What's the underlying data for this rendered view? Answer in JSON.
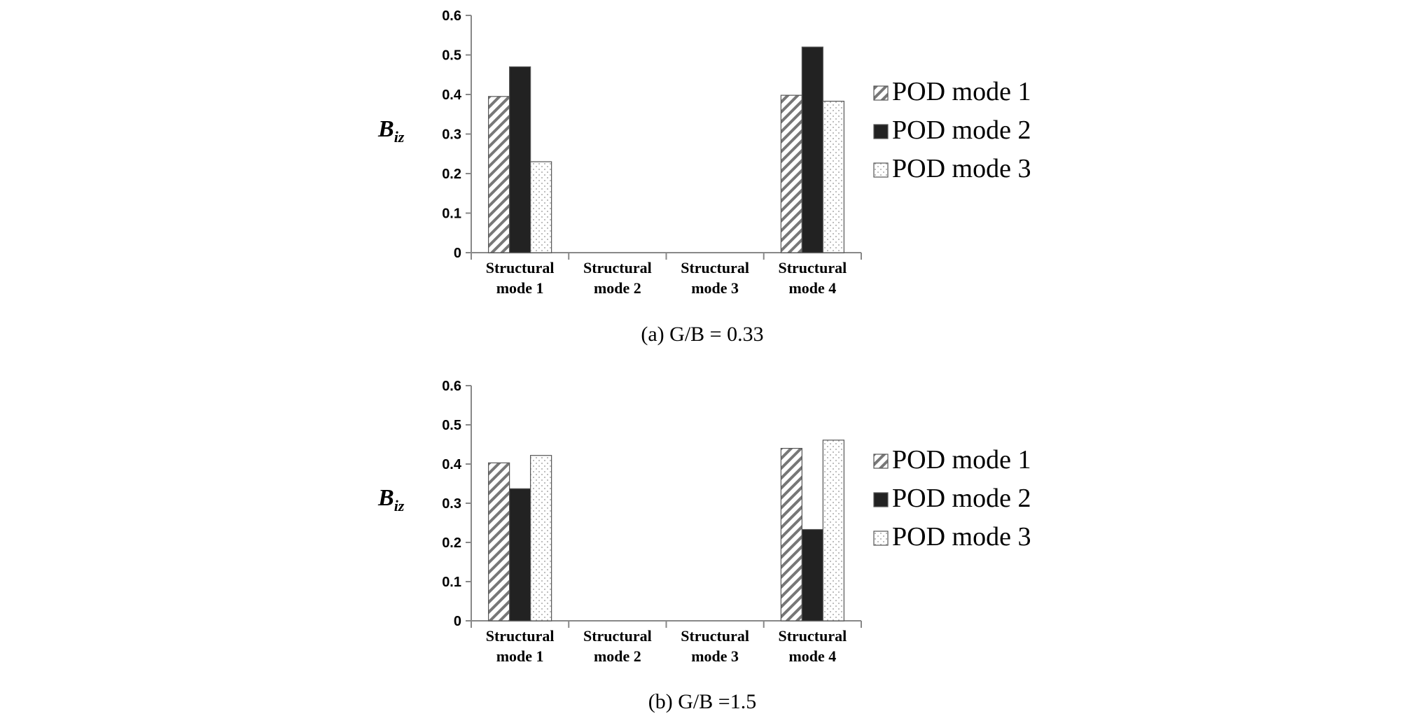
{
  "chart_data": [
    {
      "type": "bar",
      "title": "(a) G/B = 0.33",
      "ylabel_main": "B",
      "ylabel_sub": "iz",
      "ylim": [
        0,
        0.6
      ],
      "yticks": [
        "0",
        "0.1",
        "0.2",
        "0.3",
        "0.4",
        "0.5",
        "0.6"
      ],
      "categories": [
        [
          "Structural",
          "mode 1"
        ],
        [
          "Structural",
          "mode 2"
        ],
        [
          "Structural",
          "mode 3"
        ],
        [
          "Structural",
          "mode 4"
        ]
      ],
      "series": [
        {
          "name": "POD mode 1",
          "values": [
            0.395,
            0,
            0,
            0.398
          ]
        },
        {
          "name": "POD mode 2",
          "values": [
            0.47,
            0,
            0,
            0.52
          ]
        },
        {
          "name": "POD mode 3",
          "values": [
            0.23,
            0,
            0,
            0.383
          ]
        }
      ],
      "legend_position": "right",
      "grid": false
    },
    {
      "type": "bar",
      "title": "(b) G/B =1.5",
      "ylabel_main": "B",
      "ylabel_sub": "iz",
      "ylim": [
        0,
        0.6
      ],
      "yticks": [
        "0",
        "0.1",
        "0.2",
        "0.3",
        "0.4",
        "0.5",
        "0.6"
      ],
      "categories": [
        [
          "Structural",
          "mode 1"
        ],
        [
          "Structural",
          "mode 2"
        ],
        [
          "Structural",
          "mode 3"
        ],
        [
          "Structural",
          "mode 4"
        ]
      ],
      "series": [
        {
          "name": "POD mode 1",
          "values": [
            0.403,
            0,
            0,
            0.44
          ]
        },
        {
          "name": "POD mode 2",
          "values": [
            0.337,
            0,
            0,
            0.233
          ]
        },
        {
          "name": "POD mode 3",
          "values": [
            0.422,
            0,
            0,
            0.461
          ]
        }
      ],
      "legend_position": "right",
      "grid": false
    }
  ],
  "colors": {
    "pod_mode_1": "hatched-diagonal",
    "pod_mode_2": "#222222",
    "pod_mode_3": "dotted-light"
  }
}
